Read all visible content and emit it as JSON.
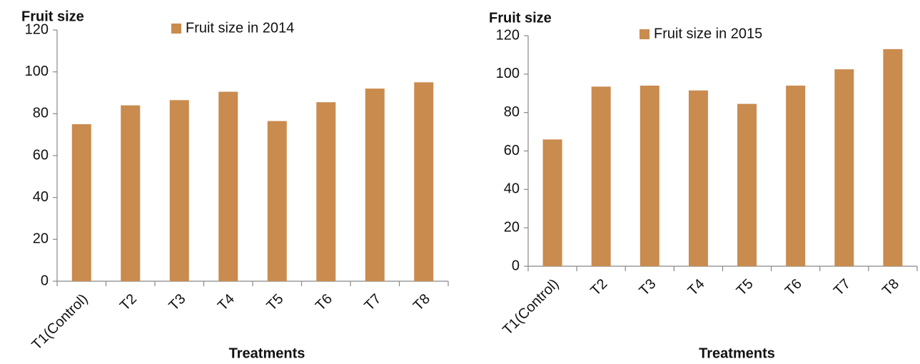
{
  "chart_data": [
    {
      "type": "bar",
      "y_label": "Fruit size",
      "x_label": "Treatments",
      "categories": [
        "T1(Control)",
        "T2",
        "T3",
        "T4",
        "T5",
        "T6",
        "T7",
        "T8"
      ],
      "series": [
        {
          "name": "Fruit size in 2014",
          "color": "#c98b4e",
          "values": [
            75,
            84,
            86.5,
            90.5,
            76.5,
            85.5,
            92,
            95
          ]
        }
      ],
      "ylim": [
        0,
        120
      ],
      "yticks": [
        0,
        20,
        40,
        60,
        80,
        100,
        120
      ]
    },
    {
      "type": "bar",
      "y_label": "Fruit size",
      "x_label": "Treatments",
      "categories": [
        "T1(Control)",
        "T2",
        "T3",
        "T4",
        "T5",
        "T6",
        "T7",
        "T8"
      ],
      "series": [
        {
          "name": "Fruit size in 2015",
          "color": "#c98b4e",
          "values": [
            66,
            93.5,
            94,
            91.5,
            84.5,
            94,
            102.5,
            113
          ]
        }
      ],
      "ylim": [
        0,
        120
      ],
      "yticks": [
        0,
        20,
        40,
        60,
        80,
        100,
        120
      ]
    }
  ]
}
